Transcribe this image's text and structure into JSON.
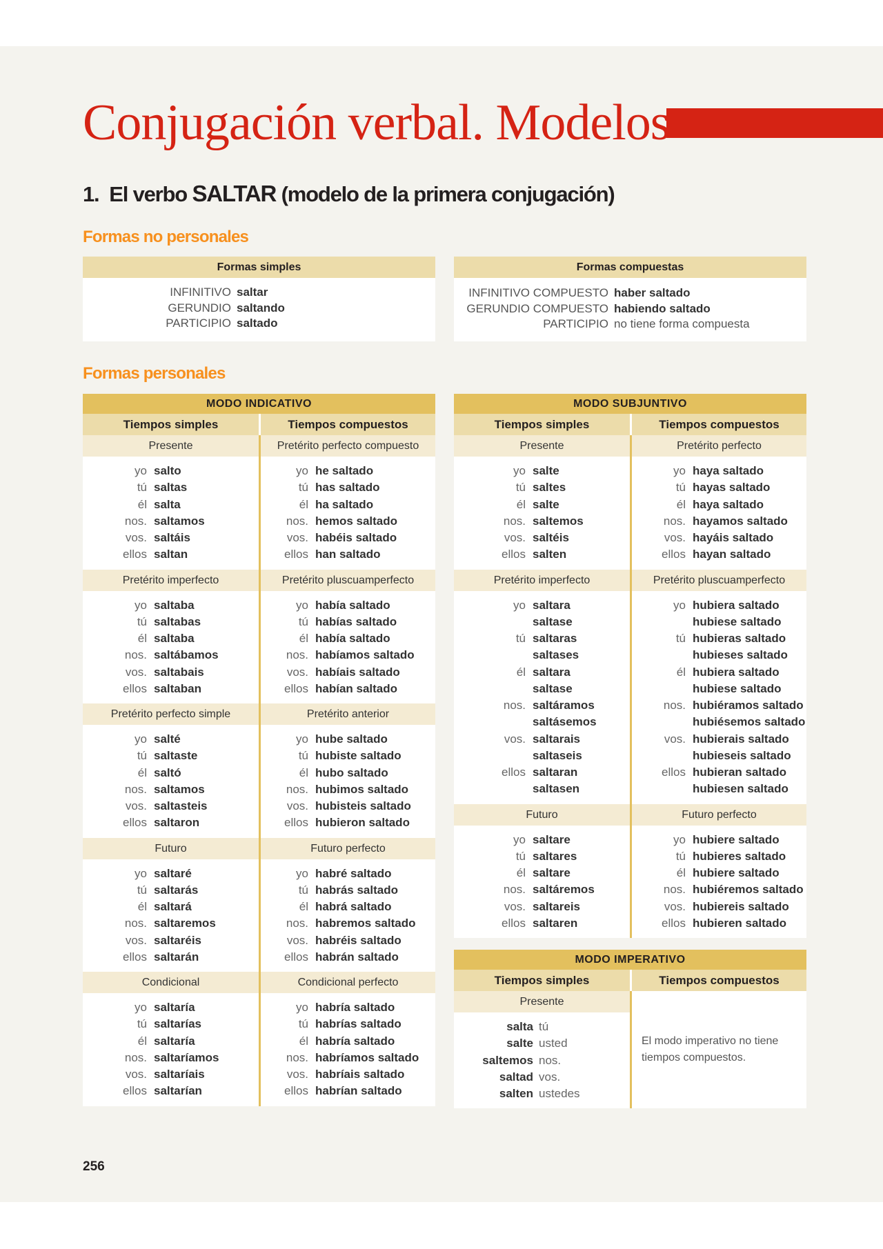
{
  "title": "Conjugación verbal. Modelos",
  "heading": {
    "number": "1.",
    "pre": "El verbo",
    "verb": "SALTAR",
    "post": "(modelo de la primera conjugación)"
  },
  "no_personales": {
    "title": "Formas no personales",
    "simples": {
      "header": "Formas simples",
      "rows": [
        [
          "INFINITIVO",
          "saltar"
        ],
        [
          "GERUNDIO",
          "saltando"
        ],
        [
          "PARTICIPIO",
          "saltado"
        ]
      ]
    },
    "compuestas": {
      "header": "Formas compuestas",
      "rows": [
        [
          "INFINITIVO COMPUESTO",
          "haber saltado"
        ],
        [
          "GERUNDIO COMPUESTO",
          "habiendo saltado"
        ],
        [
          "PARTICIPIO",
          "no tiene forma compuesta"
        ]
      ]
    }
  },
  "personales_title": "Formas personales",
  "indicativo": {
    "title": "MODO INDICATIVO",
    "cols": [
      "Tiempos simples",
      "Tiempos compuestos"
    ],
    "sections": [
      {
        "l": {
          "tense": "Presente",
          "rows": [
            [
              "yo",
              "salto"
            ],
            [
              "tú",
              "saltas"
            ],
            [
              "él",
              "salta"
            ],
            [
              "nos.",
              "saltamos"
            ],
            [
              "vos.",
              "saltáis"
            ],
            [
              "ellos",
              "saltan"
            ]
          ]
        },
        "r": {
          "tense": "Pretérito perfecto compuesto",
          "rows": [
            [
              "yo",
              "he saltado"
            ],
            [
              "tú",
              "has saltado"
            ],
            [
              "él",
              "ha saltado"
            ],
            [
              "nos.",
              "hemos saltado"
            ],
            [
              "vos.",
              "habéis saltado"
            ],
            [
              "ellos",
              "han saltado"
            ]
          ]
        }
      },
      {
        "l": {
          "tense": "Pretérito imperfecto",
          "rows": [
            [
              "yo",
              "saltaba"
            ],
            [
              "tú",
              "saltabas"
            ],
            [
              "él",
              "saltaba"
            ],
            [
              "nos.",
              "saltábamos"
            ],
            [
              "vos.",
              "saltabais"
            ],
            [
              "ellos",
              "saltaban"
            ]
          ]
        },
        "r": {
          "tense": "Pretérito pluscuamperfecto",
          "rows": [
            [
              "yo",
              "había saltado"
            ],
            [
              "tú",
              "habías saltado"
            ],
            [
              "él",
              "había saltado"
            ],
            [
              "nos.",
              "habíamos saltado"
            ],
            [
              "vos.",
              "habíais saltado"
            ],
            [
              "ellos",
              "habían saltado"
            ]
          ]
        }
      },
      {
        "l": {
          "tense": "Pretérito perfecto simple",
          "rows": [
            [
              "yo",
              "salté"
            ],
            [
              "tú",
              "saltaste"
            ],
            [
              "él",
              "saltó"
            ],
            [
              "nos.",
              "saltamos"
            ],
            [
              "vos.",
              "saltasteis"
            ],
            [
              "ellos",
              "saltaron"
            ]
          ]
        },
        "r": {
          "tense": "Pretérito anterior",
          "rows": [
            [
              "yo",
              "hube saltado"
            ],
            [
              "tú",
              "hubiste saltado"
            ],
            [
              "él",
              "hubo saltado"
            ],
            [
              "nos.",
              "hubimos saltado"
            ],
            [
              "vos.",
              "hubisteis saltado"
            ],
            [
              "ellos",
              "hubieron saltado"
            ]
          ]
        }
      },
      {
        "l": {
          "tense": "Futuro",
          "rows": [
            [
              "yo",
              "saltaré"
            ],
            [
              "tú",
              "saltarás"
            ],
            [
              "él",
              "saltará"
            ],
            [
              "nos.",
              "saltaremos"
            ],
            [
              "vos.",
              "saltaréis"
            ],
            [
              "ellos",
              "saltarán"
            ]
          ]
        },
        "r": {
          "tense": "Futuro perfecto",
          "rows": [
            [
              "yo",
              "habré saltado"
            ],
            [
              "tú",
              "habrás saltado"
            ],
            [
              "él",
              "habrá saltado"
            ],
            [
              "nos.",
              "habremos saltado"
            ],
            [
              "vos.",
              "habréis saltado"
            ],
            [
              "ellos",
              "habrán saltado"
            ]
          ]
        }
      },
      {
        "l": {
          "tense": "Condicional",
          "rows": [
            [
              "yo",
              "saltaría"
            ],
            [
              "tú",
              "saltarías"
            ],
            [
              "él",
              "saltaría"
            ],
            [
              "nos.",
              "saltaríamos"
            ],
            [
              "vos.",
              "saltaríais"
            ],
            [
              "ellos",
              "saltarían"
            ]
          ]
        },
        "r": {
          "tense": "Condicional perfecto",
          "rows": [
            [
              "yo",
              "habría saltado"
            ],
            [
              "tú",
              "habrías saltado"
            ],
            [
              "él",
              "habría saltado"
            ],
            [
              "nos.",
              "habríamos saltado"
            ],
            [
              "vos.",
              "habríais saltado"
            ],
            [
              "ellos",
              "habrían saltado"
            ]
          ]
        }
      }
    ]
  },
  "subjuntivo": {
    "title": "MODO SUBJUNTIVO",
    "cols": [
      "Tiempos simples",
      "Tiempos compuestos"
    ],
    "sections": [
      {
        "l": {
          "tense": "Presente",
          "rows": [
            [
              "yo",
              "salte"
            ],
            [
              "tú",
              "saltes"
            ],
            [
              "él",
              "salte"
            ],
            [
              "nos.",
              "saltemos"
            ],
            [
              "vos.",
              "saltéis"
            ],
            [
              "ellos",
              "salten"
            ]
          ]
        },
        "r": {
          "tense": "Pretérito perfecto",
          "rows": [
            [
              "yo",
              "haya saltado"
            ],
            [
              "tú",
              "hayas saltado"
            ],
            [
              "él",
              "haya saltado"
            ],
            [
              "nos.",
              "hayamos saltado"
            ],
            [
              "vos.",
              "hayáis saltado"
            ],
            [
              "ellos",
              "hayan saltado"
            ]
          ]
        }
      },
      {
        "l": {
          "tense": "Pretérito imperfecto",
          "rows": [
            [
              "yo",
              "saltara"
            ],
            [
              "",
              "saltase"
            ],
            [
              "tú",
              "saltaras"
            ],
            [
              "",
              "saltases"
            ],
            [
              "él",
              "saltara"
            ],
            [
              "",
              "saltase"
            ],
            [
              "nos.",
              "saltáramos"
            ],
            [
              "",
              "saltásemos"
            ],
            [
              "vos.",
              "saltarais"
            ],
            [
              "",
              "saltaseis"
            ],
            [
              "ellos",
              "saltaran"
            ],
            [
              "",
              "saltasen"
            ]
          ]
        },
        "r": {
          "tense": "Pretérito pluscuamperfecto",
          "rows": [
            [
              "yo",
              "hubiera saltado"
            ],
            [
              "",
              "hubiese saltado"
            ],
            [
              "tú",
              "hubieras saltado"
            ],
            [
              "",
              "hubieses saltado"
            ],
            [
              "él",
              "hubiera saltado"
            ],
            [
              "",
              "hubiese saltado"
            ],
            [
              "nos.",
              "hubiéramos saltado"
            ],
            [
              "",
              "hubiésemos saltado"
            ],
            [
              "vos.",
              "hubierais saltado"
            ],
            [
              "",
              "hubieseis saltado"
            ],
            [
              "ellos",
              "hubieran saltado"
            ],
            [
              "",
              "hubiesen saltado"
            ]
          ]
        }
      },
      {
        "l": {
          "tense": "Futuro",
          "rows": [
            [
              "yo",
              "saltare"
            ],
            [
              "tú",
              "saltares"
            ],
            [
              "él",
              "saltare"
            ],
            [
              "nos.",
              "saltáremos"
            ],
            [
              "vos.",
              "saltareis"
            ],
            [
              "ellos",
              "saltaren"
            ]
          ]
        },
        "r": {
          "tense": "Futuro perfecto",
          "rows": [
            [
              "yo",
              "hubiere saltado"
            ],
            [
              "tú",
              "hubieres saltado"
            ],
            [
              "él",
              "hubiere saltado"
            ],
            [
              "nos.",
              "hubiéremos saltado"
            ],
            [
              "vos.",
              "hubiereis saltado"
            ],
            [
              "ellos",
              "hubieren saltado"
            ]
          ]
        }
      }
    ]
  },
  "imperativo": {
    "title": "MODO IMPERATIVO",
    "cols": [
      "Tiempos simples",
      "Tiempos compuestos"
    ],
    "tense": "Presente",
    "rows": [
      [
        "salta",
        "tú"
      ],
      [
        "salte",
        "usted"
      ],
      [
        "saltemos",
        "nos."
      ],
      [
        "saltad",
        "vos."
      ],
      [
        "salten",
        "ustedes"
      ]
    ],
    "note": "El modo imperativo no tiene tiempos compuestos."
  },
  "page_number": "256",
  "colors": {
    "title_red": "#d52314",
    "orange": "#f7901e",
    "mode_header": "#e3c05e",
    "col_header": "#ecdcaa",
    "tense_header": "#f4ebd3",
    "background": "#f4f3ee"
  }
}
